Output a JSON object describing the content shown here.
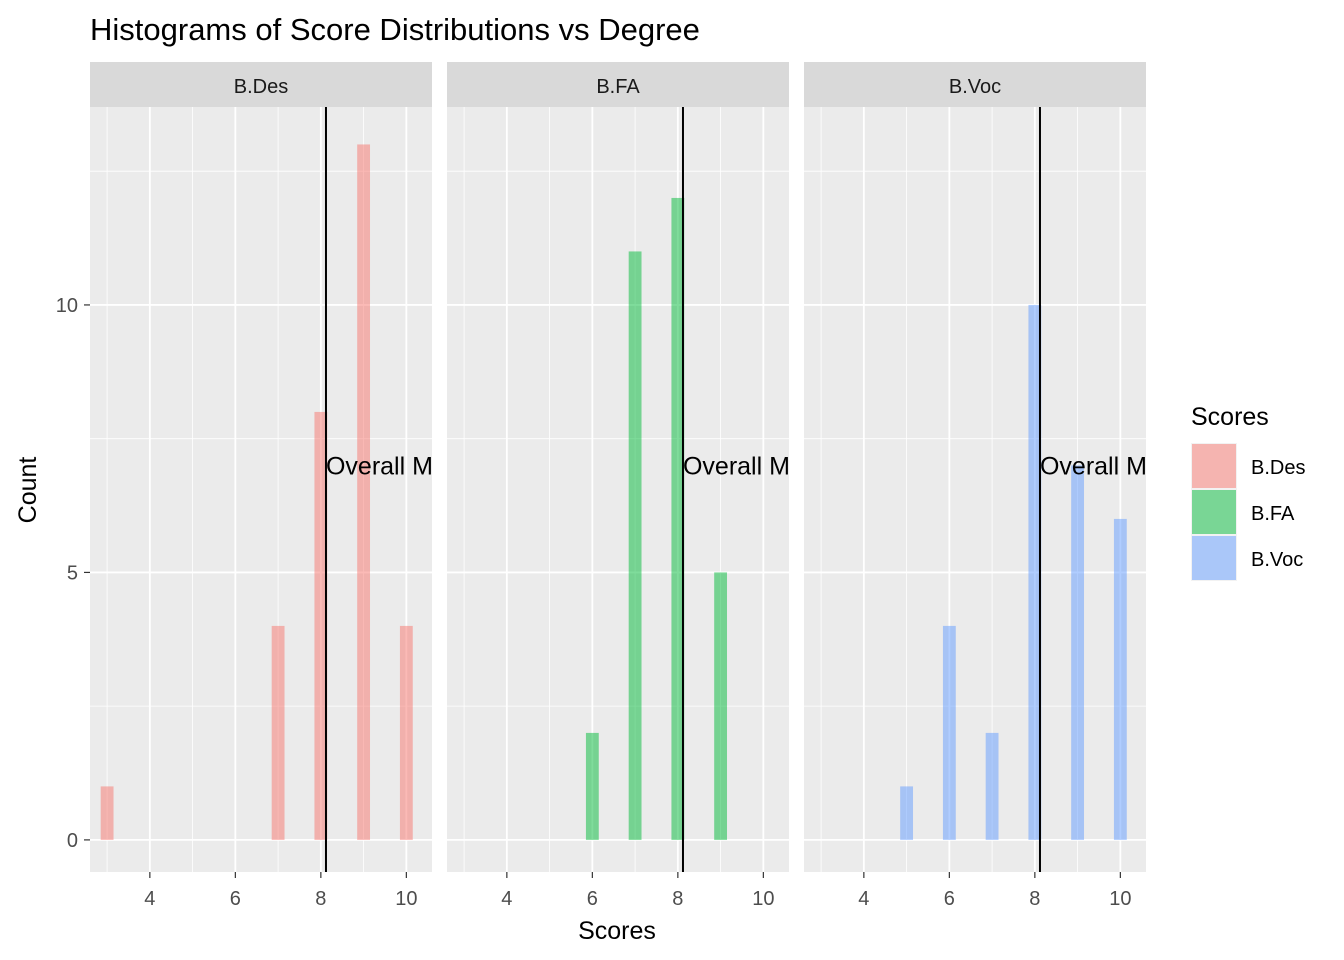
{
  "chart_data": {
    "type": "bar",
    "title": "Histograms of Score Distributions vs Degree",
    "xlabel": "Scores",
    "ylabel": "Count",
    "xlim": [
      2.6,
      10.6
    ],
    "ylim": [
      -0.6,
      13.7
    ],
    "x_ticks": [
      4,
      6,
      8,
      10
    ],
    "y_ticks": [
      0,
      5,
      10
    ],
    "bin_width": 0.3,
    "grid": true,
    "legend": {
      "title": "Scores",
      "placement": "right",
      "entries": [
        "B.Des",
        "B.FA",
        "B.Voc"
      ]
    },
    "reference_line": {
      "x": 8.12,
      "label": "Overall M",
      "label_y": 7
    },
    "panels": [
      {
        "strip_label": "B.Des",
        "color": "#F8766D",
        "bars": [
          {
            "x": 3,
            "count": 1
          },
          {
            "x": 7,
            "count": 4
          },
          {
            "x": 8,
            "count": 8
          },
          {
            "x": 9,
            "count": 13
          },
          {
            "x": 10,
            "count": 4
          }
        ]
      },
      {
        "strip_label": "B.FA",
        "color": "#00BA38",
        "bars": [
          {
            "x": 6,
            "count": 2
          },
          {
            "x": 7,
            "count": 11
          },
          {
            "x": 8,
            "count": 12
          },
          {
            "x": 9,
            "count": 5
          }
        ]
      },
      {
        "strip_label": "B.Voc",
        "color": "#619CFF",
        "bars": [
          {
            "x": 5,
            "count": 1
          },
          {
            "x": 6,
            "count": 4
          },
          {
            "x": 7,
            "count": 2
          },
          {
            "x": 8,
            "count": 10
          },
          {
            "x": 9,
            "count": 7
          },
          {
            "x": 10,
            "count": 6
          }
        ]
      }
    ]
  }
}
